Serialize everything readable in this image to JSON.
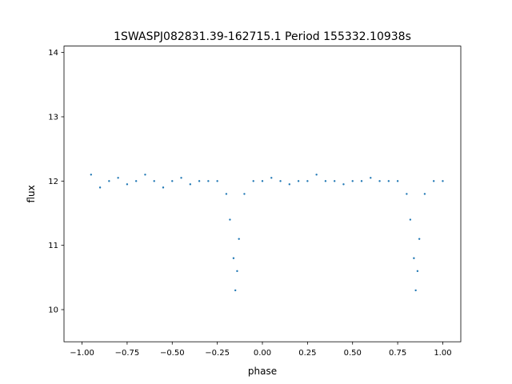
{
  "chart_data": {
    "type": "scatter",
    "title": "1SWASPJ082831.39-162715.1 Period 155332.10938s",
    "xlabel": "phase",
    "ylabel": "flux",
    "xlim": [
      -1.1,
      1.1
    ],
    "ylim": [
      9.5,
      14.1
    ],
    "xticks": [
      -1.0,
      -0.75,
      -0.5,
      -0.25,
      0.0,
      0.25,
      0.5,
      0.75,
      1.0
    ],
    "xtick_labels": [
      "−1.00",
      "−0.75",
      "−0.50",
      "−0.25",
      "0.00",
      "0.25",
      "0.50",
      "0.75",
      "1.00"
    ],
    "yticks": [
      10,
      11,
      12,
      13,
      14
    ],
    "ytick_labels": [
      "10",
      "11",
      "12",
      "13",
      "14"
    ],
    "grid": false,
    "marker_color": "#1f77b4",
    "series": [
      {
        "points": [
          [
            -0.95,
            12.1
          ],
          [
            -0.9,
            11.9
          ],
          [
            -0.85,
            12.0
          ],
          [
            -0.8,
            12.05
          ],
          [
            -0.75,
            11.95
          ],
          [
            -0.7,
            12.0
          ],
          [
            -0.65,
            12.1
          ],
          [
            -0.6,
            12.0
          ],
          [
            -0.55,
            11.9
          ],
          [
            -0.5,
            12.0
          ],
          [
            -0.45,
            12.05
          ],
          [
            -0.4,
            11.95
          ],
          [
            -0.35,
            12.0
          ],
          [
            -0.3,
            12.0
          ],
          [
            -0.25,
            12.0
          ],
          [
            -0.2,
            11.8
          ],
          [
            -0.18,
            11.4
          ],
          [
            -0.16,
            10.8
          ],
          [
            -0.15,
            10.3
          ],
          [
            -0.14,
            10.6
          ],
          [
            -0.13,
            11.1
          ],
          [
            -0.1,
            11.8
          ],
          [
            -0.05,
            12.0
          ],
          [
            0.0,
            12.0
          ],
          [
            0.05,
            12.05
          ],
          [
            0.1,
            12.0
          ],
          [
            0.15,
            11.95
          ],
          [
            0.2,
            12.0
          ],
          [
            0.25,
            12.0
          ],
          [
            0.3,
            12.1
          ],
          [
            0.35,
            12.0
          ],
          [
            0.4,
            12.0
          ],
          [
            0.45,
            11.95
          ],
          [
            0.5,
            12.0
          ],
          [
            0.55,
            12.0
          ],
          [
            0.6,
            12.05
          ],
          [
            0.65,
            12.0
          ],
          [
            0.7,
            12.0
          ],
          [
            0.75,
            12.0
          ],
          [
            0.8,
            11.8
          ],
          [
            0.82,
            11.4
          ],
          [
            0.84,
            10.8
          ],
          [
            0.85,
            10.3
          ],
          [
            0.86,
            10.6
          ],
          [
            0.87,
            11.1
          ],
          [
            0.9,
            11.8
          ],
          [
            0.95,
            12.0
          ],
          [
            1.0,
            12.0
          ]
        ]
      }
    ]
  }
}
